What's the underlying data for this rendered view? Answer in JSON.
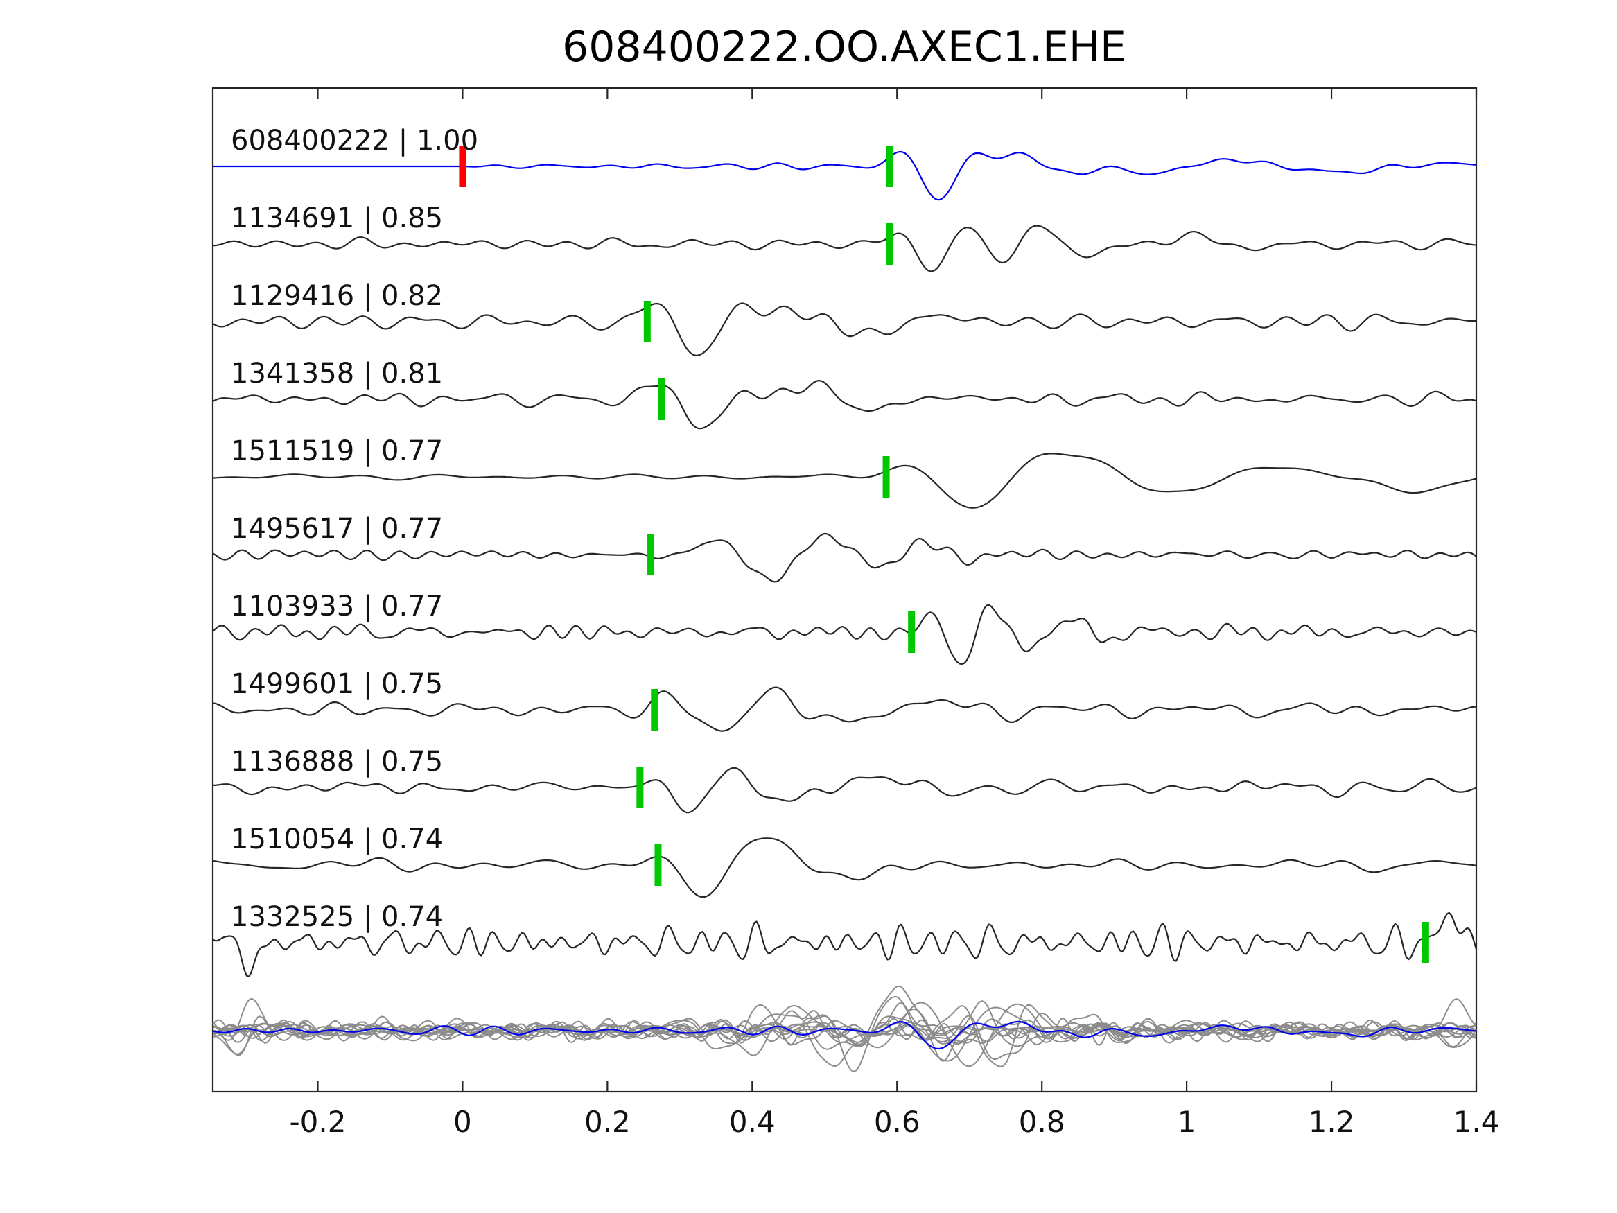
{
  "chart_data": {
    "type": "line",
    "title": "608400222.OO.AXEC1.EHE",
    "subtitle": "",
    "legend": "none",
    "grid": false,
    "x_axis": {
      "range": [
        -0.345,
        1.4
      ],
      "tick_values": [
        -0.2,
        0,
        0.2,
        0.4,
        0.6,
        0.8,
        1,
        1.2,
        1.4
      ],
      "tick_labels": [
        "-0.2",
        "0",
        "0.2",
        "0.4",
        "0.6",
        "0.8",
        "1",
        "1.2",
        "1.4"
      ]
    },
    "colors": {
      "template_trace": "#0000ee",
      "match_trace": "#262626",
      "overlay_trace": "#8c8c8c",
      "pick_green": "#00c800",
      "pick_red": "#ff0000",
      "axis": "#262626",
      "text": "#111111"
    },
    "traces": [
      {
        "event_id": "608400222",
        "correlation": "1.00",
        "label": "608400222 | 1.00",
        "role": "template",
        "picks": [
          {
            "x": 0.0,
            "color": "red"
          },
          {
            "x": 0.59,
            "color": "green"
          }
        ],
        "shape": {
          "seed": 11,
          "noise": 3,
          "fmin": 5,
          "fmax": 20,
          "noise_start": 0.0,
          "bursts": [
            {
              "c": 0.66,
              "amp": 48,
              "f": 8,
              "sigma": 0.045,
              "p": 4.9
            },
            {
              "c": 0.79,
              "amp": 18,
              "f": 6.5,
              "sigma": 0.06
            },
            {
              "c": 0.97,
              "amp": 12,
              "f": 3.2,
              "sigma": 0.12
            },
            {
              "c": 1.22,
              "amp": 7,
              "f": 2.4,
              "sigma": 0.18
            }
          ]
        }
      },
      {
        "event_id": "1134691",
        "correlation": "0.85",
        "label": "1134691 | 0.85",
        "role": "match",
        "picks": [
          {
            "x": 0.59,
            "color": "green"
          }
        ],
        "shape": {
          "seed": 22,
          "noise": 6,
          "fmin": 4,
          "fmax": 24,
          "bursts": [
            {
              "c": 0.655,
              "amp": 44,
              "f": 9,
              "sigma": 0.04,
              "p": 4.9
            },
            {
              "c": 0.77,
              "amp": 24,
              "f": 8,
              "sigma": 0.055
            },
            {
              "c": 0.95,
              "amp": 10,
              "f": 4,
              "sigma": 0.12
            }
          ]
        }
      },
      {
        "event_id": "1129416",
        "correlation": "0.82",
        "label": "1129416 | 0.82",
        "role": "match",
        "picks": [
          {
            "x": 0.255,
            "color": "green"
          }
        ],
        "shape": {
          "seed": 33,
          "noise": 7,
          "fmin": 4,
          "fmax": 22,
          "bursts": [
            {
              "c": 0.33,
              "amp": 42,
              "f": 7,
              "sigma": 0.065,
              "p": 4.9
            },
            {
              "c": 0.52,
              "amp": 20,
              "f": 4.5,
              "sigma": 0.11
            }
          ]
        }
      },
      {
        "event_id": "1341358",
        "correlation": "0.81",
        "label": "1341358 | 0.81",
        "role": "match",
        "picks": [
          {
            "x": 0.275,
            "color": "green"
          }
        ],
        "shape": {
          "seed": 44,
          "noise": 7,
          "fmin": 4,
          "fmax": 22,
          "bursts": [
            {
              "c": 0.335,
              "amp": 45,
              "f": 7,
              "sigma": 0.06,
              "p": 4.9
            },
            {
              "c": 0.5,
              "amp": 22,
              "f": 5,
              "sigma": 0.1
            }
          ]
        }
      },
      {
        "event_id": "1511519",
        "correlation": "0.77",
        "label": "1511519 | 0.77",
        "role": "match",
        "picks": [
          {
            "x": 0.585,
            "color": "green"
          }
        ],
        "shape": {
          "seed": 55,
          "noise": 6,
          "fmin": 2,
          "fmax": 12,
          "bursts": [
            {
              "c": 0.71,
              "amp": 42,
              "f": 4.5,
              "sigma": 0.075,
              "p": 4.9
            },
            {
              "c": 0.9,
              "amp": 24,
              "f": 3,
              "sigma": 0.11
            },
            {
              "c": 1.27,
              "amp": 14,
              "f": 2.6,
              "sigma": 0.16
            }
          ]
        }
      },
      {
        "event_id": "1495617",
        "correlation": "0.77",
        "label": "1495617 | 0.77",
        "role": "match",
        "picks": [
          {
            "x": 0.26,
            "color": "green"
          }
        ],
        "shape": {
          "seed": 66,
          "noise": 7,
          "fmin": 4,
          "fmax": 24,
          "bursts": [
            {
              "c": 0.43,
              "amp": 36,
              "f": 6,
              "sigma": 0.08,
              "p": 4.9
            },
            {
              "c": 0.63,
              "amp": 20,
              "f": 7,
              "sigma": 0.055
            }
          ]
        }
      },
      {
        "event_id": "1103933",
        "correlation": "0.77",
        "label": "1103933 | 0.77",
        "role": "match",
        "picks": [
          {
            "x": 0.62,
            "color": "green"
          }
        ],
        "shape": {
          "seed": 77,
          "noise": 8,
          "fmin": 8,
          "fmax": 32,
          "bursts": [
            {
              "c": 0.69,
              "amp": 46,
              "f": 11,
              "sigma": 0.045,
              "p": 4.9
            },
            {
              "c": 0.83,
              "amp": 20,
              "f": 9,
              "sigma": 0.06
            }
          ]
        }
      },
      {
        "event_id": "1499601",
        "correlation": "0.75",
        "label": "1499601 | 0.75",
        "role": "match",
        "picks": [
          {
            "x": 0.265,
            "color": "green"
          }
        ],
        "shape": {
          "seed": 88,
          "noise": 8,
          "fmin": 4,
          "fmax": 24,
          "bursts": [
            {
              "c": 0.36,
              "amp": 44,
              "f": 6.5,
              "sigma": 0.065,
              "p": 4.9
            },
            {
              "c": 0.55,
              "amp": 18,
              "f": 4,
              "sigma": 0.1
            }
          ]
        }
      },
      {
        "event_id": "1136888",
        "correlation": "0.75",
        "label": "1136888 | 0.75",
        "role": "match",
        "picks": [
          {
            "x": 0.245,
            "color": "green"
          }
        ],
        "shape": {
          "seed": 99,
          "noise": 7,
          "fmin": 4,
          "fmax": 24,
          "bursts": [
            {
              "c": 0.315,
              "amp": 40,
              "f": 7,
              "sigma": 0.05,
              "p": 4.9
            },
            {
              "c": 0.5,
              "amp": 16,
              "f": 4,
              "sigma": 0.11
            }
          ]
        }
      },
      {
        "event_id": "1510054",
        "correlation": "0.74",
        "label": "1510054 | 0.74",
        "role": "match",
        "picks": [
          {
            "x": 0.27,
            "color": "green"
          }
        ],
        "shape": {
          "seed": 110,
          "noise": 6,
          "fmin": 3,
          "fmax": 18,
          "bursts": [
            {
              "c": 0.34,
              "amp": 46,
              "f": 6,
              "sigma": 0.05,
              "p": 4.9
            },
            {
              "c": 0.47,
              "amp": 24,
              "f": 3.2,
              "sigma": 0.1
            }
          ]
        }
      },
      {
        "event_id": "1332525",
        "correlation": "0.74",
        "label": "1332525 | 0.74",
        "role": "match",
        "picks": [
          {
            "x": 1.33,
            "color": "green"
          }
        ],
        "shape": {
          "seed": 121,
          "noise": 17,
          "fmin": 9,
          "fmax": 42,
          "bursts": [
            {
              "c": -0.3,
              "amp": 34,
              "f": 9,
              "sigma": 0.025
            },
            {
              "c": 1.385,
              "amp": 40,
              "f": 7,
              "sigma": 0.035
            }
          ]
        }
      }
    ],
    "overlay": {
      "description": "all matched traces overlaid in gray with blue template on top",
      "gray_count": 12,
      "seed": 1000,
      "blue_amp_scale": 0.55,
      "blue_noise": 4
    }
  }
}
